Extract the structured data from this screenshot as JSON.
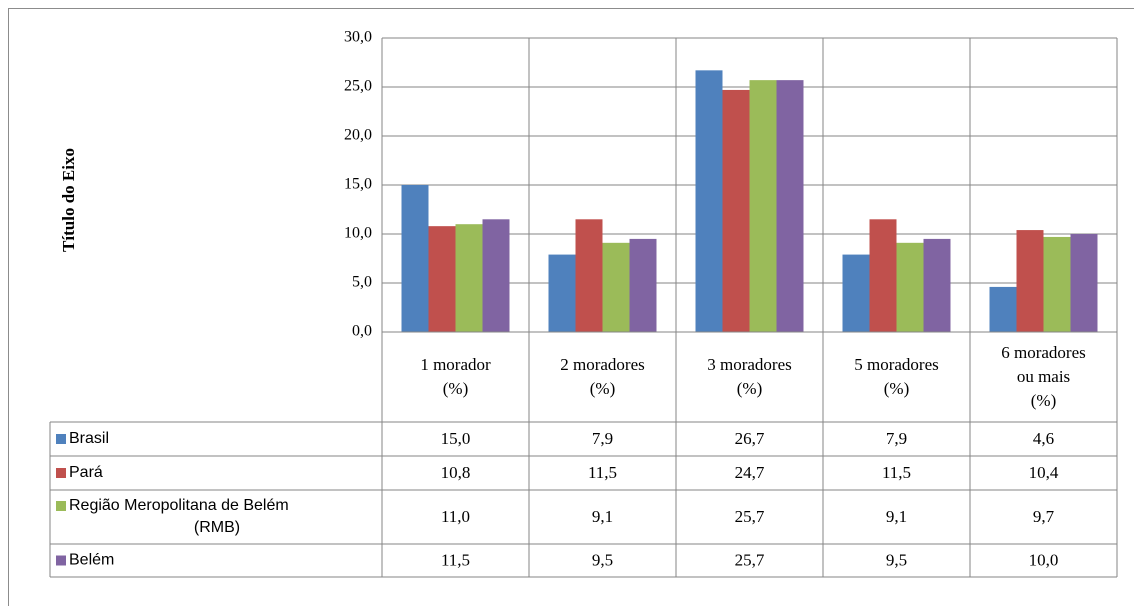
{
  "chart_data": {
    "type": "bar",
    "ylabel": "Título do Eixo",
    "ylim": [
      0,
      30
    ],
    "ytick_step": 5,
    "ytick_labels": [
      "0,0",
      "5,0",
      "10,0",
      "15,0",
      "20,0",
      "25,0",
      "30,0"
    ],
    "grid": true,
    "legend": "data-table",
    "categories": [
      [
        "1 morador",
        "(%)"
      ],
      [
        "2 moradores",
        "(%)"
      ],
      [
        "3 moradores",
        "(%)"
      ],
      [
        "5 moradores",
        "(%)"
      ],
      [
        "6 moradores",
        "ou mais",
        "(%)"
      ]
    ],
    "series": [
      {
        "name": "Brasil",
        "label_lines": [
          "Brasil"
        ],
        "color": "#4f81bd",
        "values": [
          15.0,
          7.9,
          26.7,
          7.9,
          4.6
        ],
        "labels": [
          "15,0",
          "7,9",
          "26,7",
          "7,9",
          "4,6"
        ]
      },
      {
        "name": "Pará",
        "label_lines": [
          "Pará"
        ],
        "color": "#c0504d",
        "values": [
          10.8,
          11.5,
          24.7,
          11.5,
          10.4
        ],
        "labels": [
          "10,8",
          "11,5",
          "24,7",
          "11,5",
          "10,4"
        ]
      },
      {
        "name": "Região Meropolitana de Belém (RMB)",
        "label_lines": [
          "Região Meropolitana de Belém",
          "(RMB)"
        ],
        "color": "#9bbb59",
        "values": [
          11.0,
          9.1,
          25.7,
          9.1,
          9.7
        ],
        "labels": [
          "11,0",
          "9,1",
          "25,7",
          "9,1",
          "9,7"
        ]
      },
      {
        "name": "Belém",
        "label_lines": [
          "Belém"
        ],
        "color": "#8064a2",
        "values": [
          11.5,
          9.5,
          25.7,
          9.5,
          10.0
        ],
        "labels": [
          "11,5",
          "9,5",
          "25,7",
          "9,5",
          "10,0"
        ]
      }
    ]
  }
}
